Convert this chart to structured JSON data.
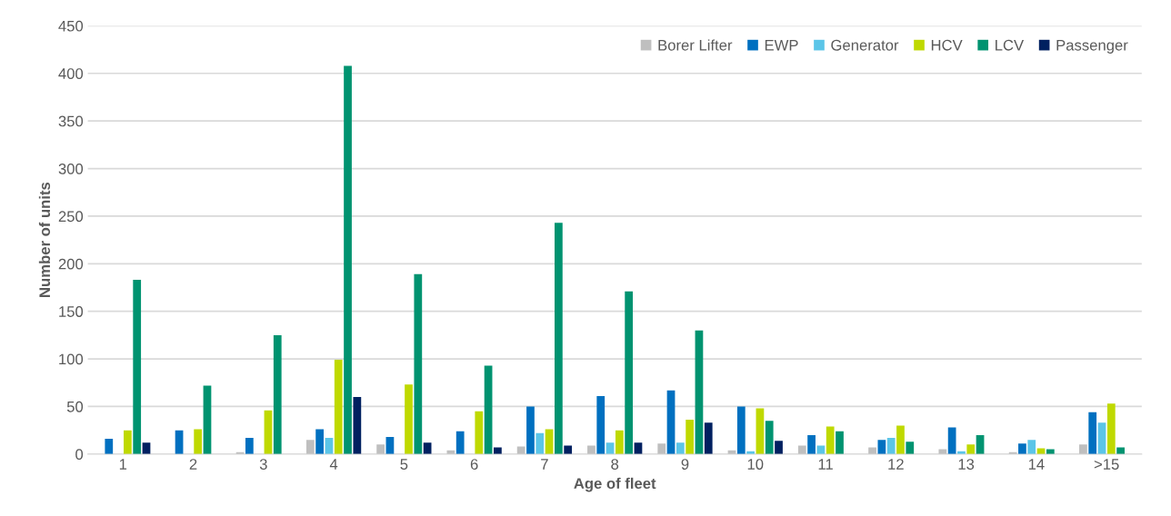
{
  "chart_data": {
    "type": "bar",
    "xlabel": "Age of fleet",
    "ylabel": "Number of units",
    "categories": [
      "1",
      "2",
      "3",
      "4",
      "5",
      "6",
      "7",
      "8",
      "9",
      "10",
      "11",
      "12",
      "13",
      "14",
      ">15"
    ],
    "series": [
      {
        "name": "Borer Lifter",
        "color": "#bfbfbf",
        "values": [
          0,
          0,
          2,
          15,
          10,
          4,
          8,
          9,
          11,
          4,
          9,
          7,
          5,
          2,
          10
        ]
      },
      {
        "name": "EWP",
        "color": "#0070c0",
        "values": [
          16,
          25,
          17,
          26,
          18,
          24,
          50,
          61,
          67,
          50,
          20,
          15,
          28,
          11,
          44
        ]
      },
      {
        "name": "Generator",
        "color": "#5bc5e8",
        "values": [
          0,
          0,
          0,
          17,
          0,
          0,
          22,
          12,
          12,
          3,
          9,
          17,
          3,
          15,
          33
        ]
      },
      {
        "name": "HCV",
        "color": "#bfd900",
        "values": [
          25,
          26,
          46,
          99,
          73,
          45,
          26,
          25,
          36,
          48,
          29,
          30,
          10,
          6,
          53
        ]
      },
      {
        "name": "LCV",
        "color": "#009370",
        "values": [
          183,
          72,
          125,
          408,
          189,
          93,
          243,
          171,
          130,
          35,
          24,
          13,
          20,
          5,
          7
        ]
      },
      {
        "name": "Passenger",
        "color": "#002060",
        "values": [
          12,
          0,
          0,
          60,
          12,
          7,
          9,
          12,
          33,
          14,
          0,
          0,
          0,
          0,
          0
        ]
      }
    ],
    "ylim": [
      0,
      450
    ],
    "yticks": [
      0,
      50,
      100,
      150,
      200,
      250,
      300,
      350,
      400,
      450
    ],
    "grid": "y",
    "legend": "top right"
  }
}
